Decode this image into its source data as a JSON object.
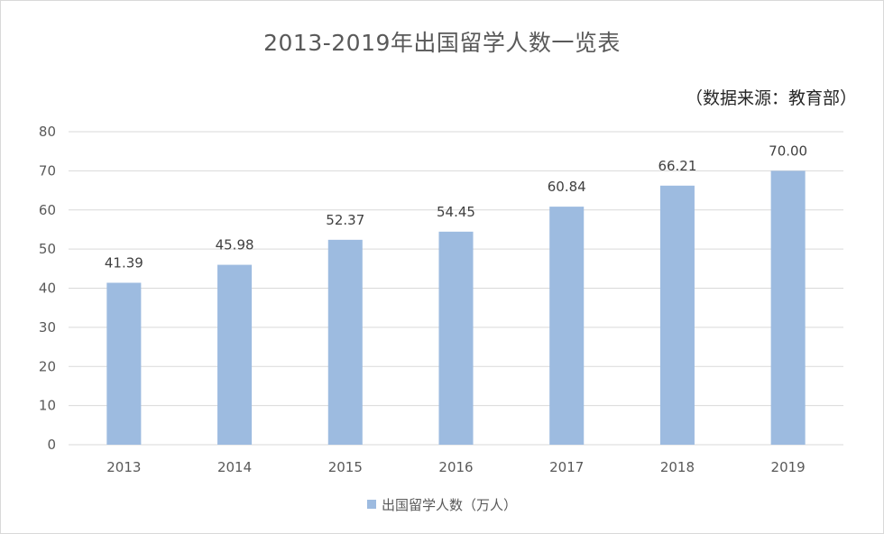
{
  "source_note": "（数据来源：教育部）",
  "colors": {
    "bar": "#9dbbe0",
    "grid": "#d9d9d9",
    "axis_text": "#595959",
    "label_text": "#404040"
  },
  "chart_data": {
    "type": "bar",
    "title": "2013-2019年出国留学人数一览表",
    "xlabel": "",
    "ylabel": "",
    "categories": [
      "2013",
      "2014",
      "2015",
      "2016",
      "2017",
      "2018",
      "2019"
    ],
    "series": [
      {
        "name": "出国留学人数（万人）",
        "values": [
          41.39,
          45.98,
          52.37,
          54.45,
          60.84,
          66.21,
          70.0
        ],
        "data_labels": [
          "41.39",
          "45.98",
          "52.37",
          "54.45",
          "60.84",
          "66.21",
          "70.00"
        ]
      }
    ],
    "ylim": [
      0,
      80
    ],
    "yticks": [
      0,
      10,
      20,
      30,
      40,
      50,
      60,
      70,
      80
    ],
    "grid": true,
    "legend_position": "bottom"
  }
}
